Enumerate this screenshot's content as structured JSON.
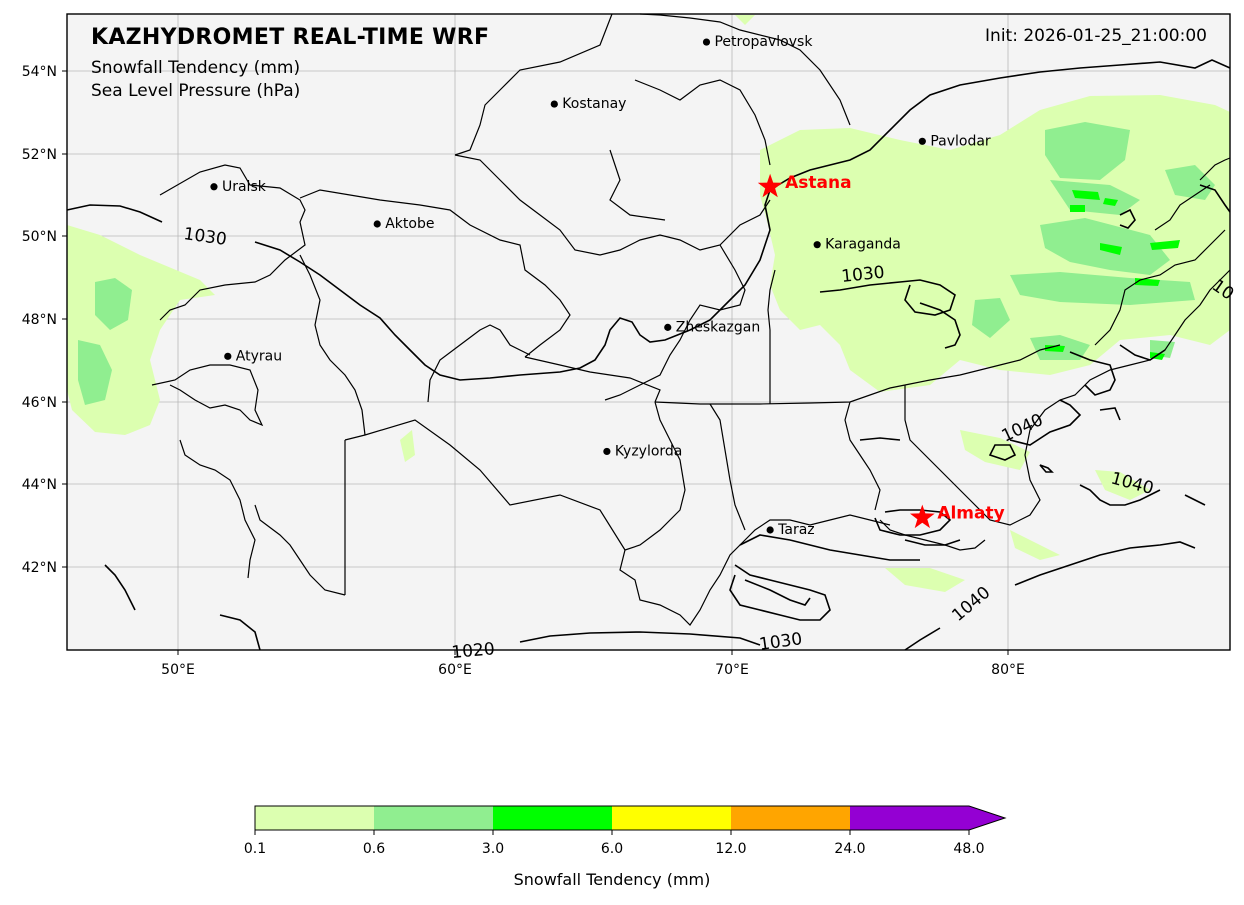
{
  "header": {
    "title": "KAZHYDROMET REAL-TIME WRF",
    "subtitle_1": "Snowfall Tendency  (mm)",
    "subtitle_2": "Sea Level Pressure  (hPa)",
    "init_label": "Init: 2026-01-25_21:00:00"
  },
  "axes": {
    "lat_ticks": [
      "54°N",
      "52°N",
      "50°N",
      "48°N",
      "46°N",
      "44°N",
      "42°N"
    ],
    "lon_ticks": [
      "50°E",
      "60°E",
      "70°E",
      "80°E"
    ]
  },
  "cities": [
    {
      "name": "Petropavlovsk",
      "lon": 69.1,
      "lat": 54.7
    },
    {
      "name": "Kostanay",
      "lon": 63.6,
      "lat": 53.2
    },
    {
      "name": "Pavlodar",
      "lon": 76.9,
      "lat": 52.3
    },
    {
      "name": "Uralsk",
      "lon": 51.3,
      "lat": 51.2
    },
    {
      "name": "Aktobe",
      "lon": 57.2,
      "lat": 50.3
    },
    {
      "name": "Karaganda",
      "lon": 73.1,
      "lat": 49.8
    },
    {
      "name": "Zheskazgan",
      "lon": 67.7,
      "lat": 47.8
    },
    {
      "name": "Atyrau",
      "lon": 51.8,
      "lat": 47.1
    },
    {
      "name": "Kyzylorda",
      "lon": 65.5,
      "lat": 44.8
    },
    {
      "name": "Taraz",
      "lon": 71.4,
      "lat": 42.9
    }
  ],
  "stars": [
    {
      "name": "Astana",
      "lon": 71.4,
      "lat": 51.2
    },
    {
      "name": "Almaty",
      "lon": 76.9,
      "lat": 43.2
    }
  ],
  "isobar_labels": [
    "1030",
    "1030",
    "1030",
    "1020",
    "1040",
    "1040",
    "1040",
    "10"
  ],
  "colorbar": {
    "title": "Snowfall Tendency (mm)",
    "levels": [
      "0.1",
      "0.6",
      "3.0",
      "6.0",
      "12.0",
      "24.0",
      "48.0"
    ],
    "colors": [
      "#dcffb0",
      "#90ee90",
      "#00ff00",
      "#ffff00",
      "#ffa500",
      "#9400d3"
    ]
  },
  "colors": {
    "map_background": "#f4f4f4",
    "star": "#ff0000",
    "light_snow": "#dcffb0",
    "moderate_snow": "#90ee90",
    "heavy_snow": "#00ff00"
  }
}
